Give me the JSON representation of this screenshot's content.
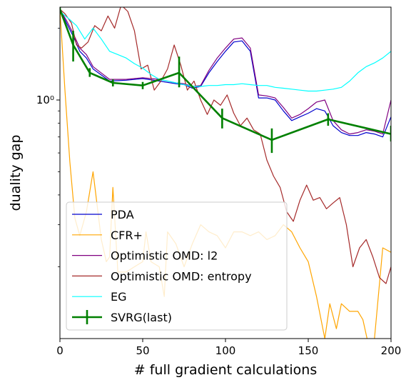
{
  "chart_data": {
    "type": "line",
    "xlabel": "# full gradient calculations",
    "ylabel": "duality gap",
    "xlim": [
      0,
      200
    ],
    "ylim": [
      0.1,
      2.45
    ],
    "y_scale": "log",
    "x_ticks": [
      0,
      50,
      100,
      150,
      200
    ],
    "y_ticks": [
      {
        "value": 1.0,
        "label": "10⁰"
      }
    ],
    "grid": false,
    "legend_position": "lower-left",
    "series": [
      {
        "name": "PDA",
        "color": "#0000cd",
        "x": [
          0,
          4,
          8,
          12,
          16,
          20,
          30,
          40,
          50,
          60,
          70,
          75,
          80,
          85,
          90,
          95,
          100,
          105,
          110,
          115,
          120,
          125,
          130,
          135,
          140,
          145,
          150,
          155,
          160,
          165,
          170,
          175,
          180,
          185,
          190,
          195,
          200
        ],
        "y": [
          2.4,
          2.1,
          1.85,
          1.6,
          1.5,
          1.35,
          1.2,
          1.21,
          1.23,
          1.2,
          1.17,
          1.16,
          1.12,
          1.14,
          1.3,
          1.45,
          1.6,
          1.75,
          1.77,
          1.6,
          1.02,
          1.02,
          1.0,
          0.9,
          0.82,
          0.85,
          0.88,
          0.92,
          0.9,
          0.78,
          0.73,
          0.71,
          0.71,
          0.73,
          0.72,
          0.7,
          0.85
        ]
      },
      {
        "name": "CFR+",
        "color": "#ffa500",
        "x": [
          0,
          3,
          6,
          9,
          12,
          16,
          20,
          25,
          28,
          30,
          32,
          35,
          40,
          45,
          50,
          52,
          55,
          60,
          63,
          65,
          70,
          75,
          80,
          85,
          90,
          95,
          100,
          105,
          110,
          115,
          120,
          125,
          130,
          135,
          140,
          145,
          150,
          155,
          160,
          163,
          167,
          170,
          175,
          180,
          183,
          187,
          190,
          195,
          200
        ],
        "y": [
          2.4,
          1.1,
          0.55,
          0.32,
          0.27,
          0.34,
          0.5,
          0.26,
          0.21,
          0.22,
          0.43,
          0.19,
          0.19,
          0.2,
          0.21,
          0.28,
          0.21,
          0.2,
          0.15,
          0.28,
          0.25,
          0.2,
          0.25,
          0.3,
          0.28,
          0.27,
          0.24,
          0.28,
          0.28,
          0.27,
          0.28,
          0.26,
          0.27,
          0.3,
          0.28,
          0.24,
          0.21,
          0.15,
          0.1,
          0.14,
          0.11,
          0.14,
          0.13,
          0.13,
          0.12,
          0.09,
          0.1,
          0.24,
          0.23
        ]
      },
      {
        "name": "Optimistic OMD: l2",
        "color": "#800080",
        "x": [
          0,
          4,
          8,
          12,
          16,
          20,
          30,
          40,
          50,
          60,
          70,
          75,
          80,
          85,
          90,
          95,
          100,
          105,
          110,
          115,
          120,
          125,
          130,
          135,
          140,
          145,
          150,
          155,
          160,
          165,
          170,
          175,
          180,
          185,
          190,
          195,
          200
        ],
        "y": [
          2.4,
          2.15,
          1.9,
          1.65,
          1.55,
          1.38,
          1.22,
          1.22,
          1.24,
          1.22,
          1.18,
          1.17,
          1.14,
          1.15,
          1.33,
          1.5,
          1.65,
          1.8,
          1.82,
          1.65,
          1.05,
          1.04,
          1.02,
          0.93,
          0.84,
          0.87,
          0.92,
          0.98,
          1.0,
          0.82,
          0.75,
          0.72,
          0.73,
          0.75,
          0.74,
          0.72,
          1.0
        ]
      },
      {
        "name": "Optimistic OMD: entropy",
        "color": "#a52a2a",
        "x": [
          0,
          3,
          7,
          10,
          13,
          17,
          21,
          25,
          29,
          33,
          37,
          41,
          45,
          49,
          53,
          57,
          61,
          65,
          69,
          73,
          77,
          81,
          85,
          89,
          93,
          97,
          101,
          105,
          109,
          113,
          117,
          121,
          125,
          129,
          133,
          137,
          141,
          145,
          149,
          153,
          157,
          161,
          165,
          169,
          173,
          177,
          181,
          185,
          189,
          193,
          197,
          200
        ],
        "y": [
          2.4,
          2.3,
          2.1,
          1.7,
          1.65,
          1.75,
          2.05,
          1.95,
          2.25,
          2.0,
          2.5,
          2.35,
          1.95,
          1.35,
          1.4,
          1.1,
          1.2,
          1.35,
          1.7,
          1.4,
          1.1,
          1.2,
          1.0,
          0.87,
          1.0,
          0.95,
          1.05,
          0.88,
          0.78,
          0.84,
          0.75,
          0.72,
          0.56,
          0.48,
          0.43,
          0.34,
          0.31,
          0.38,
          0.44,
          0.38,
          0.39,
          0.35,
          0.37,
          0.39,
          0.3,
          0.2,
          0.24,
          0.26,
          0.22,
          0.18,
          0.17,
          0.2
        ]
      },
      {
        "name": "EG",
        "color": "#00ffff",
        "x": [
          0,
          5,
          10,
          15,
          20,
          25,
          30,
          35,
          40,
          45,
          50,
          55,
          60,
          65,
          70,
          75,
          80,
          85,
          90,
          95,
          100,
          105,
          110,
          115,
          120,
          125,
          130,
          135,
          140,
          145,
          150,
          155,
          160,
          165,
          170,
          175,
          180,
          185,
          190,
          195,
          200
        ],
        "y": [
          2.35,
          2.2,
          2.05,
          1.8,
          2.0,
          1.8,
          1.6,
          1.55,
          1.5,
          1.42,
          1.36,
          1.28,
          1.22,
          1.2,
          1.18,
          1.16,
          1.14,
          1.14,
          1.15,
          1.15,
          1.16,
          1.16,
          1.17,
          1.16,
          1.15,
          1.15,
          1.13,
          1.12,
          1.11,
          1.1,
          1.09,
          1.09,
          1.1,
          1.11,
          1.13,
          1.2,
          1.3,
          1.38,
          1.43,
          1.5,
          1.6
        ]
      },
      {
        "name": "SVRG(last)",
        "color": "#008000",
        "x": [
          0,
          8,
          18,
          32,
          50,
          72,
          98,
          128,
          162,
          200
        ],
        "y": [
          2.4,
          1.7,
          1.3,
          1.18,
          1.15,
          1.3,
          0.84,
          0.68,
          0.83,
          0.72
        ],
        "err_low": [
          2.3,
          1.45,
          1.25,
          1.14,
          1.11,
          1.13,
          0.76,
          0.6,
          0.78,
          0.67
        ],
        "err_high": [
          2.5,
          1.95,
          1.36,
          1.22,
          1.19,
          1.52,
          0.92,
          0.76,
          0.88,
          0.78
        ]
      }
    ]
  }
}
